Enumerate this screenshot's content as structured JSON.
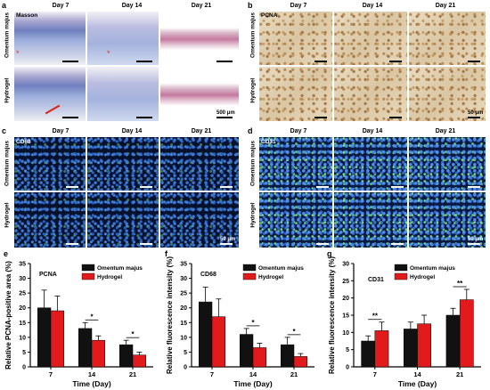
{
  "panels": {
    "a": {
      "letter": "a",
      "stain": "Masson",
      "days": [
        "Day 7",
        "Day 14",
        "Day 21"
      ],
      "rows": [
        "Omentum majus",
        "Hydrogel"
      ],
      "scale": "500 μm"
    },
    "b": {
      "letter": "b",
      "stain": "PCNA",
      "days": [
        "Day 7",
        "Day 14",
        "Day 21"
      ],
      "rows": [
        "Omentum majus",
        "Hydrogel"
      ],
      "scale": "50 μm"
    },
    "c": {
      "letter": "c",
      "stain": "CD68",
      "days": [
        "Day 7",
        "Day 14",
        "Day 21"
      ],
      "rows": [
        "Omentum majus",
        "Hydrogel"
      ],
      "scale": "50 μm"
    },
    "d": {
      "letter": "d",
      "stain": "CD31",
      "days": [
        "Day 7",
        "Day 14",
        "Day 21"
      ],
      "rows": [
        "Omentum majus",
        "Hydrogel"
      ],
      "scale": "50 μm"
    }
  },
  "colors": {
    "omentum": "#111111",
    "hydrogel": "#e31a1c"
  },
  "chart_data": [
    {
      "letter": "e",
      "type": "bar",
      "label": "PCNA",
      "categories": [
        "7",
        "14",
        "21"
      ],
      "series": [
        {
          "name": "Omentum majus",
          "values": [
            20,
            13,
            7.5
          ],
          "errors": [
            6,
            2,
            1.5
          ]
        },
        {
          "name": "Hydrogel",
          "values": [
            19,
            9,
            4
          ],
          "errors": [
            5,
            1.5,
            1
          ]
        }
      ],
      "ylabel": "Relative PCNA-positive area (%)",
      "xlabel": "Time (Day)",
      "ylim": [
        0,
        35
      ],
      "yticks": [
        0,
        5,
        10,
        15,
        20,
        25,
        30,
        35
      ],
      "sig": [
        {
          "cat": 1,
          "text": "*"
        },
        {
          "cat": 2,
          "text": "*"
        }
      ],
      "legend": "top-right"
    },
    {
      "letter": "f",
      "type": "bar",
      "label": "CD68",
      "categories": [
        "7",
        "14",
        "21"
      ],
      "series": [
        {
          "name": "Omentum majus",
          "values": [
            22,
            11,
            7.5
          ],
          "errors": [
            5,
            2,
            2.5
          ]
        },
        {
          "name": "Hydrogel",
          "values": [
            17,
            6.5,
            3.5
          ],
          "errors": [
            6,
            1.5,
            1
          ]
        }
      ],
      "ylabel": "Relative fluorescence intensity (%)",
      "xlabel": "Time (Day)",
      "ylim": [
        0,
        35
      ],
      "yticks": [
        0,
        5,
        10,
        15,
        20,
        25,
        30,
        35
      ],
      "sig": [
        {
          "cat": 1,
          "text": "*"
        },
        {
          "cat": 2,
          "text": "*"
        }
      ],
      "legend": "top-right"
    },
    {
      "letter": "g",
      "type": "bar",
      "label": "CD31",
      "categories": [
        "7",
        "14",
        "21"
      ],
      "series": [
        {
          "name": "Omentum majus",
          "values": [
            7.5,
            11,
            15
          ],
          "errors": [
            1.5,
            2,
            2
          ]
        },
        {
          "name": "Hydrogel",
          "values": [
            10.5,
            12.5,
            19.5
          ],
          "errors": [
            2.5,
            2.5,
            3
          ]
        }
      ],
      "ylabel": "Relative fluorescence intensity (%)",
      "xlabel": "Time (Day)",
      "ylim": [
        0,
        30
      ],
      "yticks": [
        0,
        5,
        10,
        15,
        20,
        25,
        30
      ],
      "sig": [
        {
          "cat": 0,
          "text": "**"
        },
        {
          "cat": 2,
          "text": "**"
        }
      ],
      "legend": "top-left"
    }
  ]
}
